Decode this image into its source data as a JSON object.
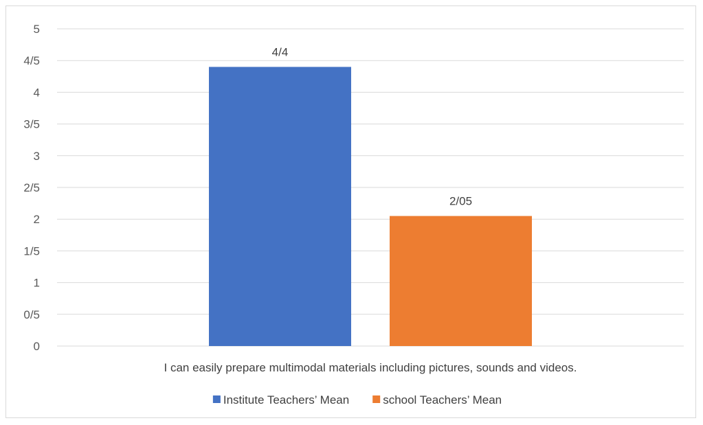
{
  "chart_data": {
    "type": "bar",
    "categories": [
      "I can easily prepare multimodal materials including pictures, sounds and videos."
    ],
    "series": [
      {
        "name": "Institute Teachers’ Mean",
        "values": [
          4.4
        ],
        "label": "4/4",
        "color": "#4472c4"
      },
      {
        "name": "school Teachers’ Mean",
        "values": [
          2.05
        ],
        "label": "2/05",
        "color": "#ed7d31"
      }
    ],
    "y_ticks": [
      {
        "value": 0,
        "label": "0"
      },
      {
        "value": 0.5,
        "label": "0/5"
      },
      {
        "value": 1,
        "label": "1"
      },
      {
        "value": 1.5,
        "label": "1/5"
      },
      {
        "value": 2,
        "label": "2"
      },
      {
        "value": 2.5,
        "label": "2/5"
      },
      {
        "value": 3,
        "label": "3"
      },
      {
        "value": 3.5,
        "label": "3/5"
      },
      {
        "value": 4,
        "label": "4"
      },
      {
        "value": 4.5,
        "label": "4/5"
      },
      {
        "value": 5,
        "label": "5"
      }
    ],
    "ylim": [
      0,
      5
    ],
    "grid": true,
    "legend_position": "bottom",
    "gridline_color": "#d9d9d9"
  }
}
